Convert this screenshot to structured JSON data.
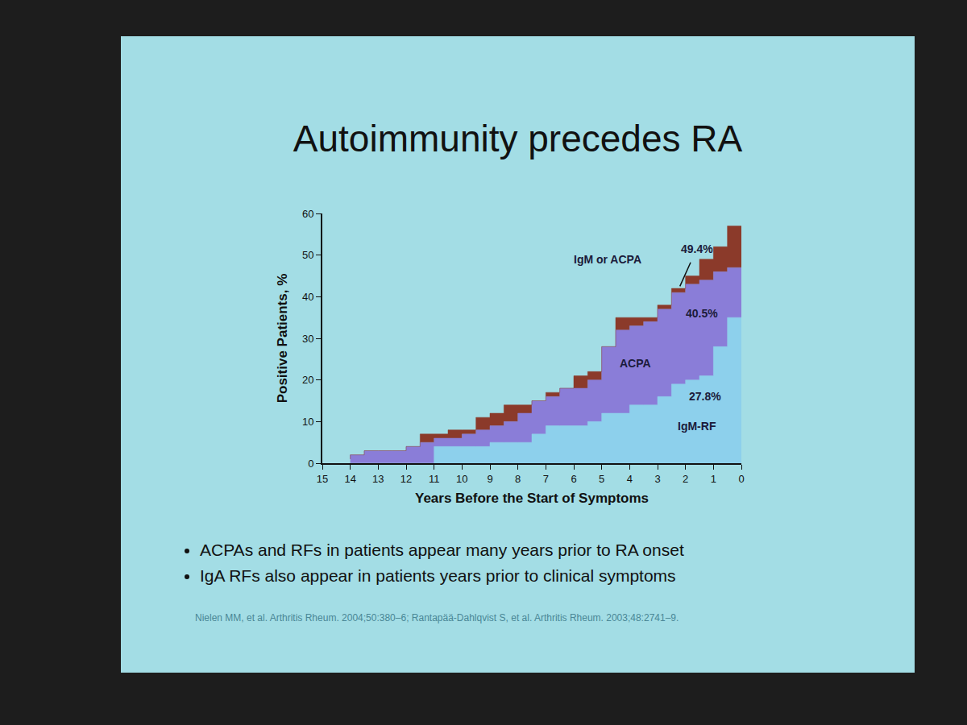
{
  "chart_data": {
    "type": "area",
    "title": "Autoimmunity precedes RA",
    "x_label": "Years Before the Start of Symptoms",
    "y_label": "Positive Patients, %",
    "x": [
      14,
      13.5,
      13,
      12.5,
      12,
      11.5,
      11,
      10.5,
      10,
      9.5,
      9,
      8.5,
      8,
      7.5,
      7,
      6.5,
      6,
      5.5,
      5,
      4.5,
      4,
      3.5,
      3,
      2.5,
      2,
      1.5,
      1,
      0.5,
      0
    ],
    "series": [
      {
        "name": "IgM-RF",
        "color": "#8dd0ec",
        "values": [
          0,
          0,
          0,
          0,
          0,
          0,
          0,
          4,
          4,
          4,
          4,
          5,
          5,
          5,
          7,
          9,
          9,
          9,
          10,
          12,
          12,
          14,
          14,
          16,
          19,
          20,
          21,
          28,
          35
        ]
      },
      {
        "name": "ACPA",
        "color": "#8a7dd8",
        "values": [
          1,
          2,
          3,
          3,
          3,
          4,
          5,
          2,
          2,
          3,
          4,
          4,
          5,
          7,
          8,
          7,
          9,
          9,
          10,
          16,
          20,
          19,
          20,
          21,
          22,
          23,
          23,
          18,
          12
        ]
      },
      {
        "name": "IgM or ACPA",
        "color": "#8b3a2a",
        "values": [
          0,
          0,
          0,
          0,
          0,
          0,
          2,
          1,
          2,
          1,
          3,
          3,
          4,
          2,
          0,
          1,
          0,
          3,
          2,
          0,
          3,
          2,
          1,
          1,
          1,
          2,
          5,
          6,
          10
        ]
      }
    ],
    "annotations": [
      "49.4%",
      "40.5%",
      "27.8%"
    ],
    "stacked": true,
    "line_style": "step",
    "grid": false,
    "xlim": [
      15,
      0
    ],
    "xticks": [
      15,
      14,
      13,
      12,
      11,
      10,
      9,
      8,
      7,
      6,
      5,
      4,
      3,
      2,
      1,
      0
    ],
    "ylim": [
      0,
      60
    ],
    "yticks": [
      0,
      10,
      20,
      30,
      40,
      50,
      60
    ],
    "notes": [
      "ACPAs and RFs in patients appear many years prior to RA onset",
      "IgA RFs also appear in patients years prior to clinical symptoms"
    ],
    "source": "Nielen MM, et al. Arthritis Rheum. 2004;50:380–6;  Rantapää-Dahlqvist S, et al. Arthritis Rheum. 2003;48:2741–9."
  }
}
